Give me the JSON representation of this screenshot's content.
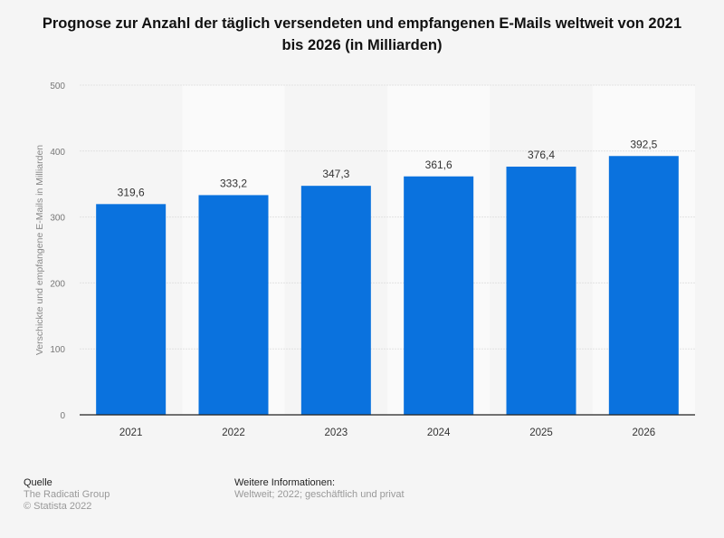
{
  "chart_data": {
    "type": "bar",
    "title": "Prognose zur Anzahl der täglich versendeten und empfangenen E-Mails weltweit von 2021 bis 2026 (in Milliarden)",
    "xlabel": "",
    "ylabel": "Verschickte und empfangene E-Mails in Milliarden",
    "categories": [
      "2021",
      "2022",
      "2023",
      "2024",
      "2025",
      "2026"
    ],
    "values": [
      319.6,
      333.2,
      347.3,
      361.6,
      376.4,
      392.5
    ],
    "value_labels": [
      "319,6",
      "333,2",
      "347,3",
      "361,6",
      "376,4",
      "392,5"
    ],
    "ylim": [
      0,
      500
    ],
    "yticks": [
      0,
      100,
      200,
      300,
      400,
      500
    ],
    "grid": true,
    "bar_color": "#0a72de"
  },
  "footer": {
    "source_heading": "Quelle",
    "source": "The Radicati Group",
    "copyright": "© Statista 2022",
    "info_heading": "Weitere Informationen:",
    "info": "Weltweit; 2022; geschäftlich und privat"
  }
}
